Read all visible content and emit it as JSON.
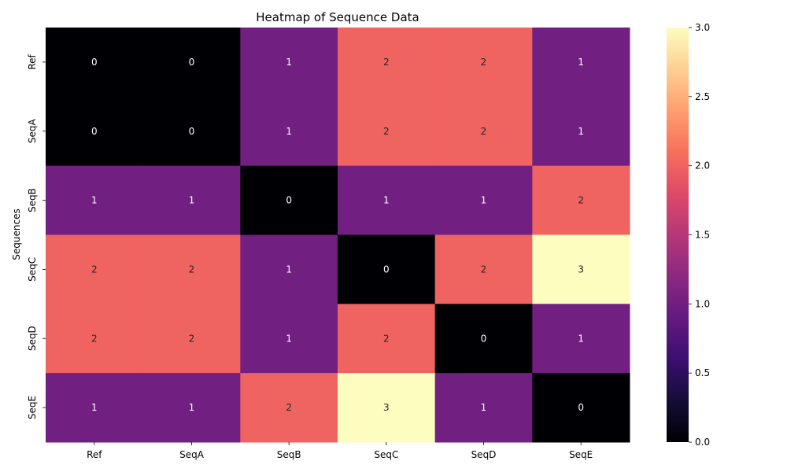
{
  "chart_data": {
    "type": "heatmap",
    "title": "Heatmap of Sequence Data",
    "xlabel": "",
    "ylabel": "Sequences",
    "x_categories": [
      "Ref",
      "SeqA",
      "SeqB",
      "SeqC",
      "SeqD",
      "SeqE"
    ],
    "y_categories": [
      "Ref",
      "SeqA",
      "SeqB",
      "SeqC",
      "SeqD",
      "SeqE"
    ],
    "values": [
      [
        0,
        0,
        1,
        2,
        2,
        1
      ],
      [
        0,
        0,
        1,
        2,
        2,
        1
      ],
      [
        1,
        1,
        0,
        1,
        1,
        2
      ],
      [
        2,
        2,
        1,
        0,
        2,
        3
      ],
      [
        2,
        2,
        1,
        2,
        0,
        1
      ],
      [
        1,
        1,
        2,
        3,
        1,
        0
      ]
    ],
    "colormap": "magma",
    "vmin": 0,
    "vmax": 3,
    "annotate": true,
    "colorbar": {
      "ticks": [
        0,
        0.5,
        1,
        1.5,
        2,
        2.5,
        3
      ],
      "tick_labels": [
        "0.0",
        "0.5",
        "1.0",
        "1.5",
        "2.0",
        "2.5",
        "3.0"
      ],
      "position": "right"
    },
    "grid": false
  }
}
